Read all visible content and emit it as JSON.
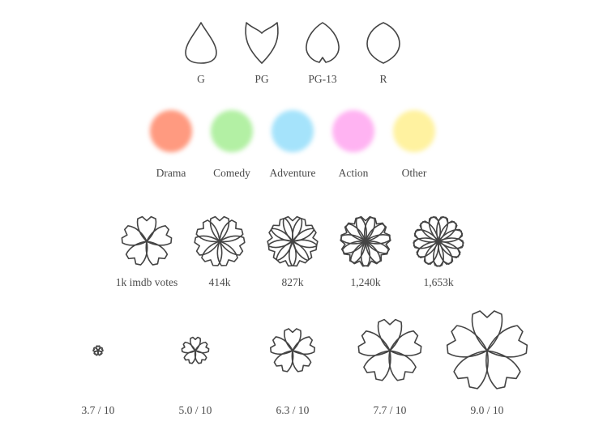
{
  "ratings": [
    {
      "label": "G",
      "shape": "teardrop-petal"
    },
    {
      "label": "PG",
      "shape": "notched-petal"
    },
    {
      "label": "PG-13",
      "shape": "heart-petal"
    },
    {
      "label": "R",
      "shape": "leaf-petal"
    }
  ],
  "genres": [
    {
      "label": "Drama",
      "color": "#ff9a80"
    },
    {
      "label": "Comedy",
      "color": "#b3f0a4"
    },
    {
      "label": "Adventure",
      "color": "#a5e3fb"
    },
    {
      "label": "Action",
      "color": "#ffb3f2"
    },
    {
      "label": "Other",
      "color": "#fff2a0"
    }
  ],
  "votes": [
    {
      "label": "1k imdb votes",
      "petals": 5
    },
    {
      "label": "414k",
      "petals": 7
    },
    {
      "label": "827k",
      "petals": 9
    },
    {
      "label": "1,240k",
      "petals": 11
    },
    {
      "label": "1,653k",
      "petals": 13
    }
  ],
  "scores": [
    {
      "label": "3.7 / 10",
      "score": 3.7
    },
    {
      "label": "5.0 / 10",
      "score": 5.0
    },
    {
      "label": "6.3 / 10",
      "score": 6.3
    },
    {
      "label": "7.7 / 10",
      "score": 7.7
    },
    {
      "label": "9.0 / 10",
      "score": 9.0
    }
  ],
  "colors": {
    "stroke": "#444444"
  }
}
